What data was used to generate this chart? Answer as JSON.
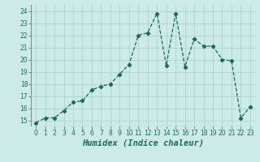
{
  "x": [
    0,
    1,
    2,
    3,
    4,
    5,
    6,
    7,
    8,
    9,
    10,
    11,
    12,
    13,
    14,
    15,
    16,
    17,
    18,
    19,
    20,
    21,
    22,
    23
  ],
  "y": [
    14.8,
    15.2,
    15.2,
    15.8,
    16.5,
    16.6,
    17.5,
    17.8,
    18.0,
    18.8,
    19.6,
    22.0,
    22.2,
    23.8,
    19.5,
    23.8,
    19.4,
    21.7,
    21.1,
    21.1,
    20.0,
    19.9,
    15.2,
    16.1
  ],
  "line_color": "#1a6b5a",
  "marker": "D",
  "marker_size": 2.2,
  "bg_color": "#cceae8",
  "grid_color": "#aed4d0",
  "xlabel": "Humidex (Indice chaleur)",
  "ylim": [
    14.5,
    24.5
  ],
  "xlim": [
    -0.5,
    23.5
  ],
  "yticks": [
    15,
    16,
    17,
    18,
    19,
    20,
    21,
    22,
    23,
    24
  ],
  "xticks": [
    0,
    1,
    2,
    3,
    4,
    5,
    6,
    7,
    8,
    9,
    10,
    11,
    12,
    13,
    14,
    15,
    16,
    17,
    18,
    19,
    20,
    21,
    22,
    23
  ],
  "tick_fontsize": 5.5,
  "xlabel_fontsize": 7.5,
  "xlabel_fontweight": "bold"
}
